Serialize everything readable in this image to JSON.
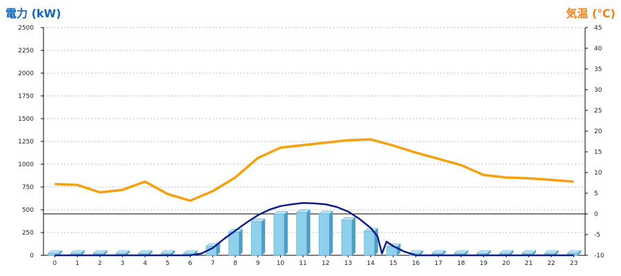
{
  "left_axis_title": "電力 (kW)",
  "right_axis_title": "気温 (℃)",
  "colors": {
    "bar_front": "#8fd0ec",
    "bar_side": "#4f9cc4",
    "bar_top": "#b7e3f5",
    "power_line": "#0d1b8c",
    "temp_line": "#f5a00f",
    "grid": "#b9b9b9"
  },
  "chart_data": {
    "type": "bar",
    "categories": [
      "0",
      "1",
      "2",
      "3",
      "4",
      "5",
      "6",
      "7",
      "8",
      "9",
      "10",
      "11",
      "12",
      "13",
      "14",
      "15",
      "16",
      "17",
      "18",
      "19",
      "20",
      "21",
      "22",
      "23"
    ],
    "y_left": {
      "ylim": [
        0,
        2500
      ],
      "ticks": [
        0,
        250,
        500,
        750,
        1000,
        1250,
        1500,
        1750,
        2000,
        2250,
        2500
      ]
    },
    "y_right": {
      "ylim": [
        -10,
        45
      ],
      "ticks": [
        -10,
        -5,
        0,
        5,
        10,
        15,
        20,
        25,
        30,
        35,
        40,
        45
      ]
    },
    "series": [
      {
        "type": "bar",
        "axis": "left",
        "values": [
          0,
          0,
          0,
          0,
          0,
          0,
          0,
          100,
          255,
          370,
          450,
          470,
          455,
          385,
          265,
          95,
          0,
          0,
          0,
          0,
          0,
          0,
          0,
          0
        ]
      },
      {
        "type": "line",
        "axis": "left",
        "x": [
          0,
          1,
          2,
          3,
          4,
          5,
          6,
          6.5,
          7,
          7.5,
          8,
          8.5,
          9,
          9.5,
          10,
          10.5,
          11,
          11.5,
          12,
          12.5,
          13,
          13.5,
          14,
          14.3,
          14.5,
          14.7,
          15,
          15.5,
          16,
          17,
          18,
          19,
          20,
          21,
          22,
          23
        ],
        "values": [
          0,
          0,
          0,
          0,
          0,
          0,
          0,
          20,
          80,
          180,
          270,
          360,
          440,
          500,
          540,
          560,
          575,
          570,
          560,
          530,
          480,
          400,
          300,
          210,
          20,
          150,
          100,
          40,
          0,
          0,
          0,
          0,
          0,
          0,
          0,
          0
        ]
      },
      {
        "type": "line",
        "axis": "right",
        "x": [
          0,
          1,
          2,
          3,
          4,
          5,
          6,
          7,
          8,
          9,
          10,
          11,
          12,
          13,
          14,
          15,
          16,
          17,
          18,
          19,
          20,
          21,
          22,
          23
        ],
        "values": [
          7.2,
          7.0,
          5.2,
          5.8,
          7.8,
          4.8,
          3.2,
          5.5,
          8.8,
          13.5,
          16,
          16.6,
          17.2,
          17.8,
          18,
          16.5,
          14.8,
          13.3,
          11.8,
          9.4,
          8.8,
          8.6,
          8.2,
          7.8
        ]
      }
    ]
  }
}
